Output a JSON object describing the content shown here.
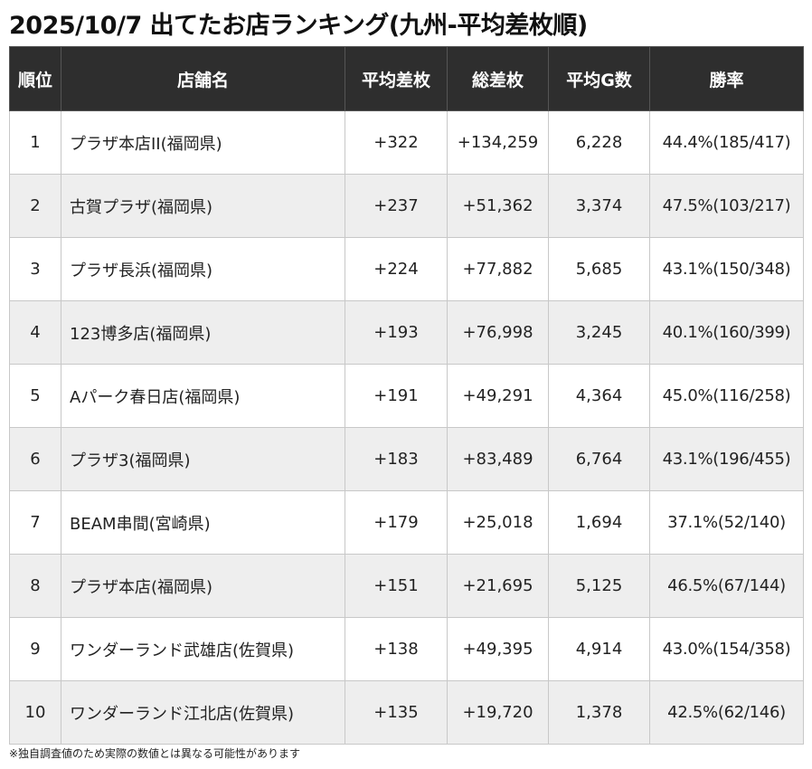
{
  "title": "2025/10/7 出てたお店ランキング(九州-平均差枚順)",
  "headers": {
    "rank": "順位",
    "store": "店舗名",
    "avg_diff": "平均差枚",
    "total_diff": "総差枚",
    "avg_games": "平均G数",
    "win_rate": "勝率"
  },
  "rows": [
    {
      "rank": "1",
      "store": "プラザ本店II(福岡県)",
      "avg_diff": "+322",
      "total_diff": "+134,259",
      "avg_games": "6,228",
      "win_rate": "44.4%(185/417)"
    },
    {
      "rank": "2",
      "store": "古賀プラザ(福岡県)",
      "avg_diff": "+237",
      "total_diff": "+51,362",
      "avg_games": "3,374",
      "win_rate": "47.5%(103/217)"
    },
    {
      "rank": "3",
      "store": "プラザ長浜(福岡県)",
      "avg_diff": "+224",
      "total_diff": "+77,882",
      "avg_games": "5,685",
      "win_rate": "43.1%(150/348)"
    },
    {
      "rank": "4",
      "store": "123博多店(福岡県)",
      "avg_diff": "+193",
      "total_diff": "+76,998",
      "avg_games": "3,245",
      "win_rate": "40.1%(160/399)"
    },
    {
      "rank": "5",
      "store": "Aパーク春日店(福岡県)",
      "avg_diff": "+191",
      "total_diff": "+49,291",
      "avg_games": "4,364",
      "win_rate": "45.0%(116/258)"
    },
    {
      "rank": "6",
      "store": "プラザ3(福岡県)",
      "avg_diff": "+183",
      "total_diff": "+83,489",
      "avg_games": "6,764",
      "win_rate": "43.1%(196/455)"
    },
    {
      "rank": "7",
      "store": "BEAM串間(宮崎県)",
      "avg_diff": "+179",
      "total_diff": "+25,018",
      "avg_games": "1,694",
      "win_rate": "37.1%(52/140)"
    },
    {
      "rank": "8",
      "store": "プラザ本店(福岡県)",
      "avg_diff": "+151",
      "total_diff": "+21,695",
      "avg_games": "5,125",
      "win_rate": "46.5%(67/144)"
    },
    {
      "rank": "9",
      "store": "ワンダーランド武雄店(佐賀県)",
      "avg_diff": "+138",
      "total_diff": "+49,395",
      "avg_games": "4,914",
      "win_rate": "43.0%(154/358)"
    },
    {
      "rank": "10",
      "store": "ワンダーランド江北店(佐賀県)",
      "avg_diff": "+135",
      "total_diff": "+19,720",
      "avg_games": "1,378",
      "win_rate": "42.5%(62/146)"
    }
  ],
  "footnote": "※独自調査値のため実際の数値とは異なる可能性があります",
  "colors": {
    "header_bg": "#2e2e2e",
    "header_text": "#ffffff",
    "row_alt_bg": "#eeeeee",
    "row_bg": "#ffffff"
  }
}
